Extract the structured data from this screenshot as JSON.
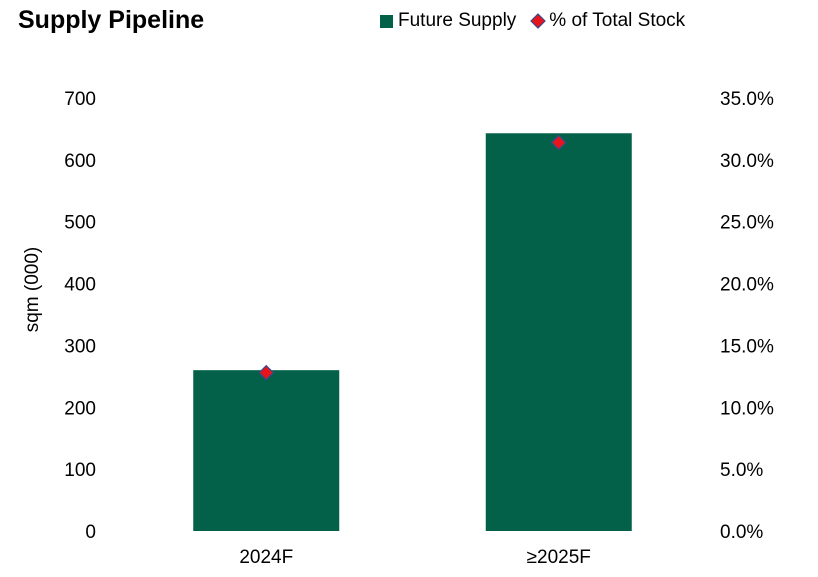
{
  "title": "Supply Pipeline",
  "legend": {
    "bar_label": "Future Supply",
    "marker_label": "% of Total Stock"
  },
  "colors": {
    "bar": "#046149",
    "marker_fill": "#e8141b",
    "marker_stroke": "#3a4a8a"
  },
  "chart_data": {
    "type": "bar",
    "title": "Supply Pipeline",
    "categories": [
      "2024F",
      "≥2025F"
    ],
    "series": [
      {
        "name": "Future Supply",
        "type": "bar",
        "axis": "left",
        "values": [
          260,
          643
        ]
      },
      {
        "name": "% of Total Stock",
        "type": "scatter",
        "axis": "right",
        "marker": "diamond",
        "values": [
          12.8,
          31.4
        ]
      }
    ],
    "ylabel": "sqm (000)",
    "ylim": [
      0,
      700
    ],
    "yticks": [
      "0",
      "100",
      "200",
      "300",
      "400",
      "500",
      "600",
      "700"
    ],
    "y2lim": [
      0,
      35
    ],
    "y2ticks": [
      "0.0%",
      "5.0%",
      "10.0%",
      "15.0%",
      "20.0%",
      "25.0%",
      "30.0%",
      "35.0%"
    ],
    "grid": false,
    "legend_position": "top-right"
  }
}
